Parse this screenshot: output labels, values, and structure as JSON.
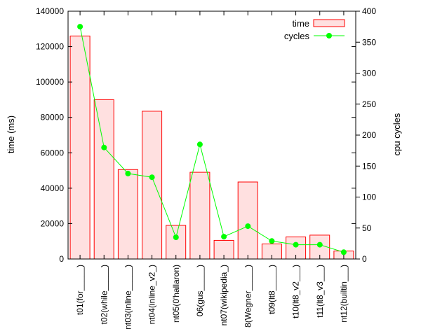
{
  "chart_data": {
    "type": "bar",
    "categories": [
      "t01(for_____)",
      "t02(while_____)",
      "nt03(inline_____)",
      "nt04(inline_v2_)",
      "nt05(0'hallaron)",
      "06(gus_____)",
      "nt07(wikipedia_)",
      "8(Wegner_____)",
      "t09(lt8_____)",
      "t10(lt8_v2___)",
      "t11(lt8_v3___)",
      "nt12(builtin___)"
    ],
    "series": [
      {
        "name": "time",
        "kind": "bar",
        "axis": "left",
        "color": "#ff0000",
        "fill": "#ffe0e0",
        "values": [
          126000,
          90000,
          50500,
          83500,
          19000,
          49000,
          10500,
          43500,
          8500,
          12500,
          13500,
          4500
        ]
      },
      {
        "name": "cycles",
        "kind": "line",
        "axis": "right",
        "color": "#00ff00",
        "values": [
          375,
          180,
          138,
          132,
          35,
          185,
          36,
          53,
          29,
          23,
          23,
          11
        ]
      }
    ],
    "ylabel": "time (ms)",
    "y2label": "cpu cycles",
    "ylim": [
      0,
      140000
    ],
    "y2lim": [
      0,
      400
    ],
    "yticks": [
      "0",
      "20000",
      "40000",
      "60000",
      "80000",
      "100000",
      "120000",
      "140000"
    ],
    "y2ticks": [
      "0",
      "50",
      "100",
      "150",
      "200",
      "250",
      "300",
      "350",
      "400"
    ],
    "legend_position": "top-right",
    "grid": false
  }
}
